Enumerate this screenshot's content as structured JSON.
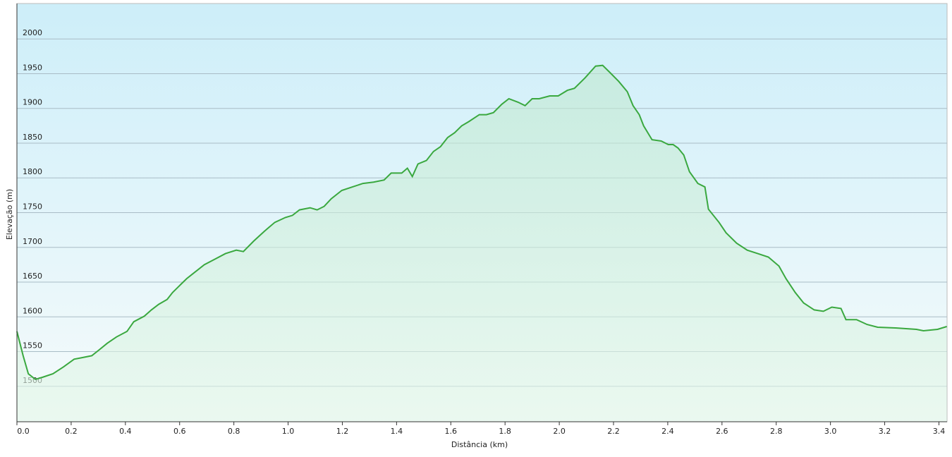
{
  "chart_data": {
    "type": "area",
    "x_label": "Distância  (km)",
    "y_label": "Elevação (m)",
    "x": [
      0,
      0.023,
      0.042,
      0.068,
      0.094,
      0.133,
      0.172,
      0.211,
      0.237,
      0.276,
      0.302,
      0.333,
      0.367,
      0.406,
      0.431,
      0.47,
      0.496,
      0.523,
      0.554,
      0.574,
      0.6,
      0.626,
      0.652,
      0.691,
      0.73,
      0.769,
      0.809,
      0.835,
      0.873,
      0.912,
      0.951,
      0.99,
      1.016,
      1.042,
      1.081,
      1.107,
      1.133,
      1.159,
      1.198,
      1.237,
      1.276,
      1.315,
      1.354,
      1.38,
      1.419,
      1.44,
      1.458,
      1.479,
      1.51,
      1.536,
      1.562,
      1.588,
      1.614,
      1.64,
      1.666,
      1.705,
      1.731,
      1.757,
      1.788,
      1.814,
      1.848,
      1.874,
      1.9,
      1.926,
      1.965,
      1.996,
      2.03,
      2.056,
      2.095,
      2.134,
      2.16,
      2.186,
      2.219,
      2.251,
      2.272,
      2.295,
      2.311,
      2.342,
      2.376,
      2.402,
      2.42,
      2.438,
      2.459,
      2.48,
      2.511,
      2.537,
      2.55,
      2.589,
      2.615,
      2.654,
      2.693,
      2.732,
      2.771,
      2.81,
      2.836,
      2.87,
      2.901,
      2.94,
      2.974,
      3.005,
      3.039,
      3.057,
      3.096,
      3.135,
      3.174,
      3.239,
      3.317,
      3.343,
      3.395,
      3.429
    ],
    "values": [
      1579,
      1544,
      1518,
      1510,
      1513,
      1518,
      1528,
      1539,
      1541,
      1544,
      1552,
      1562,
      1571,
      1579,
      1593,
      1601,
      1610,
      1618,
      1625,
      1635,
      1645,
      1655,
      1663,
      1675,
      1683,
      1691,
      1696,
      1694,
      1709,
      1723,
      1736,
      1743,
      1746,
      1754,
      1757,
      1754,
      1759,
      1770,
      1782,
      1787,
      1792,
      1794,
      1797,
      1807,
      1807,
      1814,
      1802,
      1820,
      1825,
      1838,
      1845,
      1858,
      1865,
      1875,
      1881,
      1891,
      1891,
      1894,
      1906,
      1914,
      1909,
      1904,
      1914,
      1914,
      1918,
      1918,
      1926,
      1929,
      1944,
      1961,
      1962,
      1952,
      1939,
      1924,
      1904,
      1891,
      1875,
      1855,
      1853,
      1848,
      1848,
      1843,
      1833,
      1809,
      1792,
      1787,
      1755,
      1736,
      1721,
      1706,
      1696,
      1691,
      1686,
      1673,
      1655,
      1635,
      1620,
      1610,
      1608,
      1614,
      1612,
      1596,
      1596,
      1589,
      1585,
      1584,
      1582,
      1580,
      1582,
      1586
    ],
    "color": "#3aa83f",
    "xlim": [
      0,
      3.43
    ],
    "ylim": [
      1449,
      2051
    ],
    "xticks": [
      {
        "value": 0,
        "label": "0.0"
      },
      0.2,
      0.4,
      0.6,
      0.8,
      {
        "value": 1,
        "label": "1.0"
      },
      1.2,
      1.4,
      1.6,
      1.8,
      {
        "value": 2,
        "label": "2.0"
      },
      2.2,
      2.4,
      2.6,
      2.8,
      {
        "value": 3,
        "label": "3.0"
      },
      3.2,
      3.4
    ],
    "yticks": [
      1500,
      1550,
      1600,
      1650,
      1700,
      1750,
      1800,
      1850,
      1900,
      1950,
      2000
    ],
    "grid": true
  }
}
